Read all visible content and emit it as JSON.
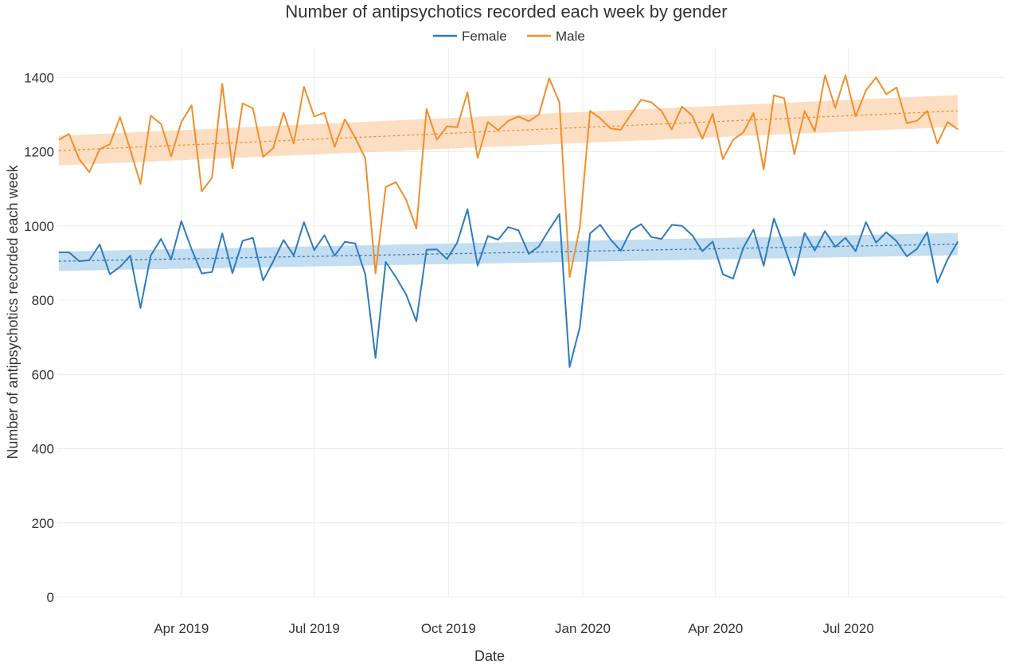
{
  "chart_data": {
    "type": "line",
    "title": "Number of antipsychotics recorded each week by gender",
    "xlabel": "Date",
    "ylabel": "Number of antipsychotics recorded each week",
    "x_start": "2019-01-07",
    "x_step_days": 7,
    "x_ticks": [
      {
        "date": "2019-04-01",
        "label": "Apr 2019"
      },
      {
        "date": "2019-07-01",
        "label": "Jul 2019"
      },
      {
        "date": "2019-10-01",
        "label": "Oct 2019"
      },
      {
        "date": "2020-01-01",
        "label": "Jan 2020"
      },
      {
        "date": "2020-04-01",
        "label": "Apr 2020"
      },
      {
        "date": "2020-07-01",
        "label": "Jul 2020"
      }
    ],
    "xlim": [
      "2019-01-06",
      "2020-10-15"
    ],
    "ylim": [
      0,
      1480
    ],
    "y_ticks": [
      0,
      200,
      400,
      600,
      800,
      1000,
      1200,
      1400
    ],
    "grid": true,
    "legend_position": "top-center",
    "series": [
      {
        "name": "Female",
        "color": "#2e7bbf",
        "values": [
          929,
          929,
          905,
          908,
          950,
          870,
          890,
          920,
          779,
          920,
          965,
          910,
          1013,
          937,
          872,
          876,
          980,
          873,
          960,
          968,
          853,
          905,
          962,
          920,
          1010,
          935,
          975,
          920,
          957,
          953,
          870,
          644,
          903,
          862,
          815,
          743,
          936,
          937,
          911,
          955,
          1045,
          893,
          973,
          963,
          997,
          988,
          925,
          945,
          990,
          1032,
          620,
          727,
          980,
          1003,
          964,
          933,
          988,
          1005,
          970,
          965,
          1003,
          1000,
          975,
          932,
          958,
          870,
          858,
          941,
          990,
          893,
          1020,
          945,
          866,
          981,
          934,
          986,
          944,
          968,
          932,
          1010,
          955,
          983,
          959,
          918,
          938,
          983,
          847,
          910,
          958
        ],
        "trend": {
          "start": 905,
          "end": 951,
          "band_half_width": [
            26,
            30
          ],
          "band_color": "#b9d7ee"
        }
      },
      {
        "name": "Male",
        "color": "#f28e2b",
        "values": [
          1232,
          1248,
          1180,
          1145,
          1207,
          1220,
          1293,
          1205,
          1113,
          1297,
          1275,
          1187,
          1280,
          1325,
          1093,
          1130,
          1383,
          1155,
          1330,
          1317,
          1186,
          1210,
          1305,
          1222,
          1375,
          1295,
          1305,
          1213,
          1287,
          1238,
          1183,
          872,
          1105,
          1118,
          1070,
          993,
          1315,
          1232,
          1268,
          1266,
          1360,
          1183,
          1280,
          1258,
          1283,
          1295,
          1282,
          1300,
          1398,
          1333,
          862,
          995,
          1310,
          1290,
          1263,
          1259,
          1300,
          1340,
          1333,
          1310,
          1260,
          1322,
          1297,
          1235,
          1302,
          1180,
          1232,
          1252,
          1304,
          1152,
          1352,
          1344,
          1193,
          1310,
          1255,
          1406,
          1318,
          1406,
          1295,
          1365,
          1400,
          1355,
          1373,
          1277,
          1283,
          1310,
          1222,
          1280,
          1260
        ],
        "trend": {
          "start": 1203,
          "end": 1310,
          "band_half_width": [
            40,
            43
          ],
          "band_color": "#fcd8b8"
        }
      }
    ]
  }
}
